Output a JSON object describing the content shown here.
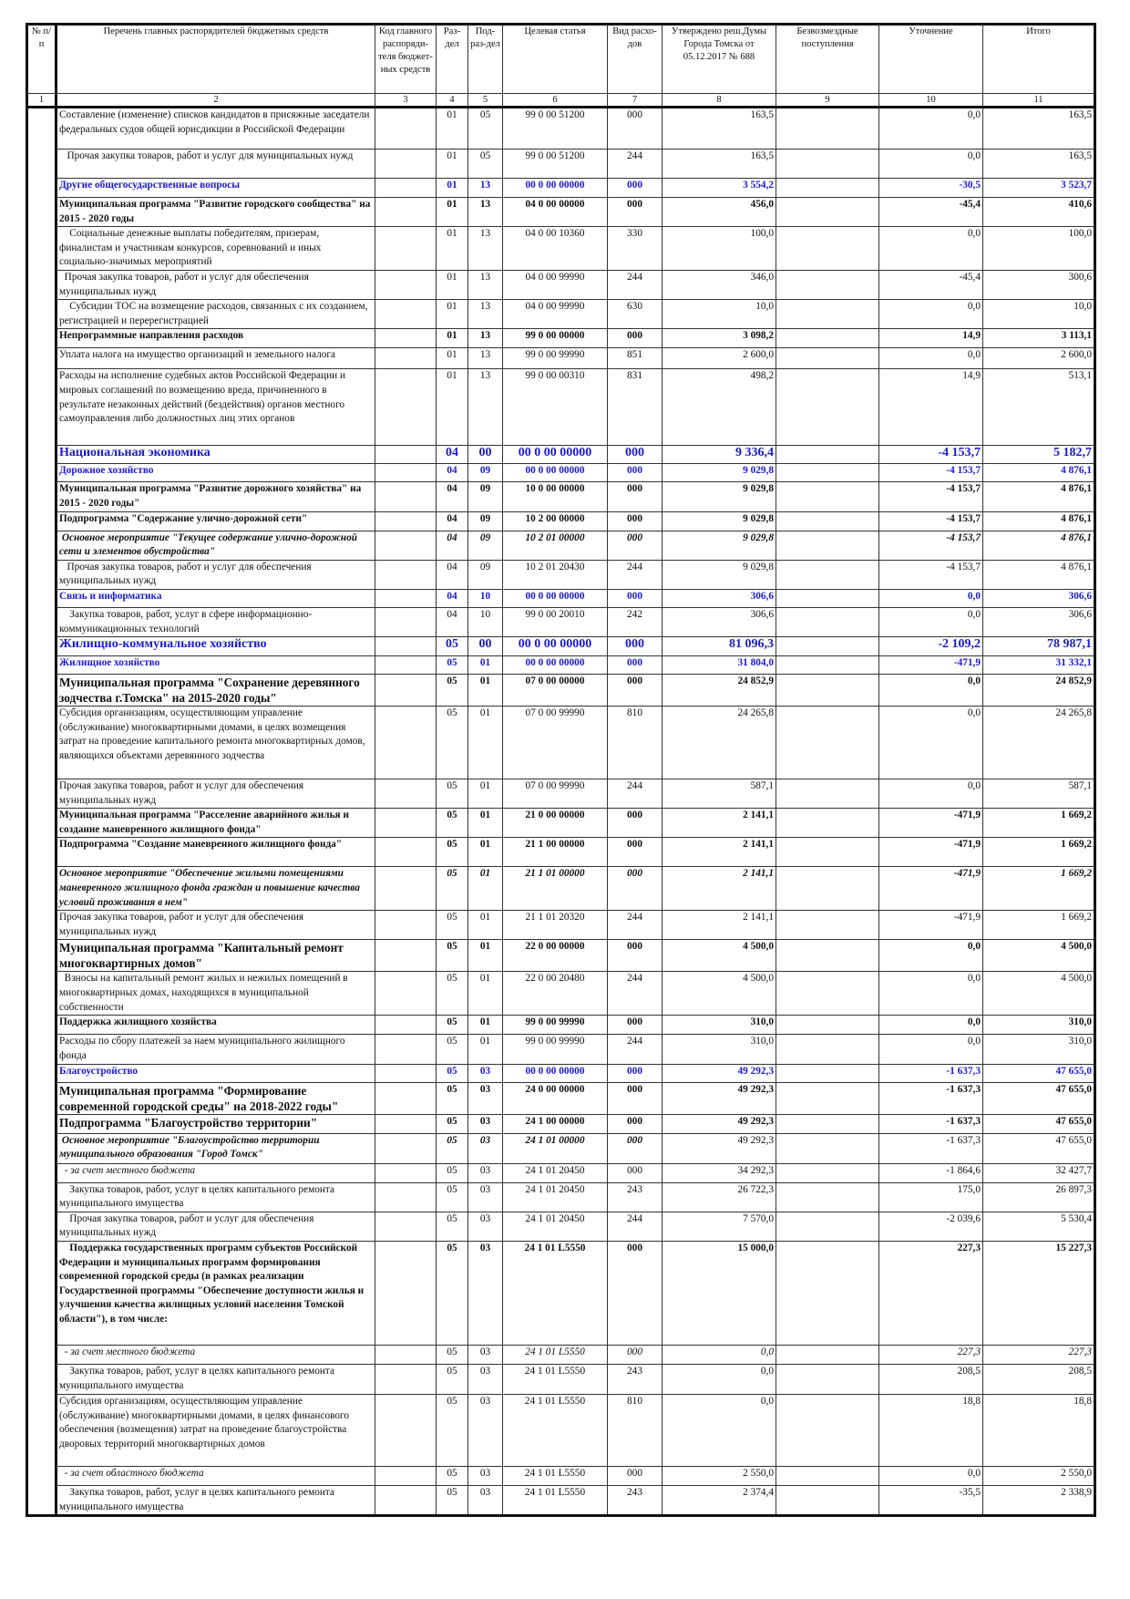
{
  "header": {
    "col1": "№ п/п",
    "col2": "Перечень главных распорядителей бюджетных средств",
    "col3": "Код главного распоряди-теля бюджет-ных средств",
    "col4": "Раз-дел",
    "col5": "Под-раз-дел",
    "col6": "Целевая статья",
    "col7": "Вид расхо-дов",
    "col8": "Утверждено реш.Думы Города Томска от 05.12.2017 № 688",
    "col9": "Безвозмездные поступления",
    "col10": "Уточнение",
    "col11": "Итого",
    "numbers": [
      "1",
      "2",
      "3",
      "4",
      "5",
      "6",
      "7",
      "8",
      "9",
      "10",
      "11"
    ]
  },
  "colors": {
    "section_blue": "#1a1adc"
  },
  "rows": [
    {
      "style": "normal",
      "name": "Составление (изменение) списков кандидатов в присяжные заседатели федеральных судов общей юрисдикции в Российской Федерации",
      "rz": "01",
      "prz": "05",
      "cs": "99 0 00 51200",
      "vr": "000",
      "approved": "163,5",
      "change": "0,0",
      "total": "163,5"
    },
    {
      "style": "normal",
      "name": "   Прочая закупка товаров, работ и услуг для муниципальных нужд",
      "rz": "01",
      "prz": "05",
      "cs": "99 0 00 51200",
      "vr": "244",
      "approved": "163,5",
      "change": "0,0",
      "total": "163,5"
    },
    {
      "style": "blue",
      "name": "Другие общегосударственные вопросы",
      "rz": "01",
      "prz": "13",
      "cs": "00 0 00 00000",
      "vr": "000",
      "approved": "3 554,2",
      "change": "-30,5",
      "total": "3 523,7"
    },
    {
      "style": "bold",
      "name": "Муниципальная программа \"Развитие городского сообщества\" на 2015 - 2020 годы",
      "rz": "01",
      "prz": "13",
      "cs": "04 0 00 00000",
      "vr": "000",
      "approved": "456,0",
      "change": "-45,4",
      "total": "410,6"
    },
    {
      "style": "normal",
      "name": "    Социальные денежные выплаты победителям, призерам, финалистам и участникам конкурсов, соревнований и иных социально-значимых мероприятий",
      "rz": "01",
      "prz": "13",
      "cs": "04 0 00 10360",
      "vr": "330",
      "approved": "100,0",
      "change": "0,0",
      "total": "100,0"
    },
    {
      "style": "normal",
      "name": "  Прочая закупка товаров, работ и услуг для обеспечения муниципальных нужд",
      "rz": "01",
      "prz": "13",
      "cs": "04 0 00 99990",
      "vr": "244",
      "approved": "346,0",
      "change": "-45,4",
      "total": "300,6"
    },
    {
      "style": "normal",
      "name": "    Субсидии ТОС на возмещение расходов, связанных с их созданием, регистрацией и перерегистрацией",
      "rz": "01",
      "prz": "13",
      "cs": "04 0 00 99990",
      "vr": "630",
      "approved": "10,0",
      "change": "0,0",
      "total": "10,0"
    },
    {
      "style": "bold",
      "name": "Непрограммные направления расходов",
      "rz": "01",
      "prz": "13",
      "cs": "99 0 00 00000",
      "vr": "000",
      "approved": "3 098,2",
      "change": "14,9",
      "total": "3 113,1"
    },
    {
      "style": "normal",
      "name": "Уплата налога на имущество организаций и земельного налога",
      "rz": "01",
      "prz": "13",
      "cs": "99 0 00 99990",
      "vr": "851",
      "approved": "2 600,0",
      "change": "0,0",
      "total": "2 600,0"
    },
    {
      "style": "normal",
      "name": "Расходы на исполнение судебных актов Российской Федерации и мировых соглашений по возмещению вреда, причиненного в результате незаконных действий (бездействия) органов местного самоуправления либо должностных лиц этих органов",
      "rz": "01",
      "prz": "13",
      "cs": "99 0 00 00310",
      "vr": "831",
      "approved": "498,2",
      "change": "14,9",
      "total": "513,1"
    },
    {
      "style": "bluelg",
      "name": "Национальная экономика",
      "rz": "04",
      "prz": "00",
      "cs": "00 0 00 00000",
      "vr": "000",
      "approved": "9 336,4",
      "change": "-4 153,7",
      "total": "5 182,7"
    },
    {
      "style": "blue",
      "name": "Дорожное хозяйство",
      "rz": "04",
      "prz": "09",
      "cs": "00 0 00 00000",
      "vr": "000",
      "approved": "9 029,8",
      "change": "-4 153,7",
      "total": "4 876,1"
    },
    {
      "style": "bold",
      "name": "Муниципальная программа \"Развитие дорожного хозяйства\" на 2015 - 2020 годы\"",
      "rz": "04",
      "prz": "09",
      "cs": "10 0 00 00000",
      "vr": "000",
      "approved": "9 029,8",
      "change": "-4 153,7",
      "total": "4 876,1"
    },
    {
      "style": "bold",
      "name": "Подпрограмма \"Содержание улично-дорожной сети\"",
      "rz": "04",
      "prz": "09",
      "cs": "10 2 00 00000",
      "vr": "000",
      "approved": "9 029,8",
      "change": "-4 153,7",
      "total": "4 876,1"
    },
    {
      "style": "bi",
      "name": " Основное мероприятие \"Текущее содержание улично-дорожной сети и элементов обустройства\"",
      "rz": "04",
      "prz": "09",
      "cs": "10 2 01 00000",
      "vr": "000",
      "approved": "9 029,8",
      "change": "-4 153,7",
      "total": "4 876,1"
    },
    {
      "style": "normal",
      "name": "   Прочая закупка товаров, работ и услуг для обеспечения муниципальных нужд",
      "rz": "04",
      "prz": "09",
      "cs": "10 2 01 20430",
      "vr": "244",
      "approved": "9 029,8",
      "change": "-4 153,7",
      "total": "4 876,1"
    },
    {
      "style": "blue",
      "name": "Связь и информатика",
      "rz": "04",
      "prz": "10",
      "cs": "00 0 00 00000",
      "vr": "000",
      "approved": "306,6",
      "change": "0,0",
      "total": "306,6"
    },
    {
      "style": "normal",
      "name": "    Закупка товаров, работ, услуг в сфере информационно-коммуникационных технологий",
      "rz": "04",
      "prz": "10",
      "cs": "99 0 00 20010",
      "vr": "242",
      "approved": "306,6",
      "change": "0,0",
      "total": "306,6"
    },
    {
      "style": "bluelg",
      "name": "Жилищно-коммунальное хозяйство",
      "rz": "05",
      "prz": "00",
      "cs": "00 0 00 00000",
      "vr": "000",
      "approved": "81 096,3",
      "change": "-2 109,2",
      "total": "78 987,1"
    },
    {
      "style": "blue",
      "name": "Жилищное хозяйство",
      "rz": "05",
      "prz": "01",
      "cs": "00 0 00 00000",
      "vr": "000",
      "approved": "31 804,0",
      "change": "-471,9",
      "total": "31 332,1"
    },
    {
      "style": "boldlg",
      "name": "Муниципальная программа \"Сохранение деревянного зодчества г.Томска\" на 2015-2020 годы\"",
      "rz": "05",
      "prz": "01",
      "cs": "07 0 00 00000",
      "vr": "000",
      "approved": "24 852,9",
      "change": "0,0",
      "total": "24 852,9"
    },
    {
      "style": "normal",
      "name": "Субсидия организациям, осуществляющим управление (обслуживание) многоквартирными домами, в целях возмещения затрат на проведение капитального ремонта многоквартирных домов, являющихся объектами деревянного зодчества",
      "rz": "05",
      "prz": "01",
      "cs": "07 0 00 99990",
      "vr": "810",
      "approved": "24 265,8",
      "change": "0,0",
      "total": "24 265,8"
    },
    {
      "style": "normal",
      "name": "Прочая закупка товаров, работ и услуг для обеспечения муниципальных нужд",
      "rz": "05",
      "prz": "01",
      "cs": "07 0 00 99990",
      "vr": "244",
      "approved": "587,1",
      "change": "0,0",
      "total": "587,1"
    },
    {
      "style": "bold",
      "name": "Муниципальная программа \"Расселение аварийного жилья и создание маневренного жилищного фонда\"",
      "rz": "05",
      "prz": "01",
      "cs": "21 0 00 00000",
      "vr": "000",
      "approved": "2 141,1",
      "change": "-471,9",
      "total": "1 669,2"
    },
    {
      "style": "bold",
      "name": "Подпрограмма \"Создание маневренного жилищного фонда\"",
      "rz": "05",
      "prz": "01",
      "cs": "21 1 00 00000",
      "vr": "000",
      "approved": "2 141,1",
      "change": "-471,9",
      "total": "1 669,2"
    },
    {
      "style": "bi",
      "name": "Основное мероприятие \"Обеспечение жилыми помещениями маневренного жилищного фонда граждан и повышение качества условий проживания в нем\"",
      "rz": "05",
      "prz": "01",
      "cs": "21 1 01 00000",
      "vr": "000",
      "approved": "2 141,1",
      "change": "-471,9",
      "total": "1 669,2"
    },
    {
      "style": "normal",
      "name": "Прочая закупка товаров, работ и услуг для обеспечения муниципальных нужд",
      "rz": "05",
      "prz": "01",
      "cs": "21 1 01 20320",
      "vr": "244",
      "approved": "2 141,1",
      "change": "-471,9",
      "total": "1 669,2"
    },
    {
      "style": "boldlg",
      "name": "Муниципальная программа \"Капитальный ремонт многоквартирных домов\"",
      "rz": "05",
      "prz": "01",
      "cs": "22 0 00 00000",
      "vr": "000",
      "approved": "4 500,0",
      "change": "0,0",
      "total": "4 500,0"
    },
    {
      "style": "normal",
      "name": "  Взносы на капитальный ремонт жилых и нежилых помещений в многоквартирных домах, находящихся в муниципальной собственности",
      "rz": "05",
      "prz": "01",
      "cs": "22 0 00 20480",
      "vr": "244",
      "approved": "4 500,0",
      "change": "0,0",
      "total": "4 500,0"
    },
    {
      "style": "bold",
      "name": "Поддержка жилищного хозяйства",
      "rz": "05",
      "prz": "01",
      "cs": "99 0 00 99990",
      "vr": "000",
      "approved": "310,0",
      "change": "0,0",
      "total": "310,0"
    },
    {
      "style": "normal",
      "name": "Расходы по сбору платежей за наем муниципального жилищного фонда",
      "rz": "05",
      "prz": "01",
      "cs": "99 0 00 99990",
      "vr": "244",
      "approved": "310,0",
      "change": "0,0",
      "total": "310,0"
    },
    {
      "style": "blue",
      "name": "Благоустройство",
      "rz": "05",
      "prz": "03",
      "cs": "00 0 00 00000",
      "vr": "000",
      "approved": "49 292,3",
      "change": "-1 637,3",
      "total": "47 655,0"
    },
    {
      "style": "boldlg",
      "name": "Муниципальная программа \"Формирование современной городской среды\" на 2018-2022 годы\"",
      "rz": "05",
      "prz": "03",
      "cs": "24 0 00 00000",
      "vr": "000",
      "approved": "49 292,3",
      "change": "-1 637,3",
      "total": "47 655,0"
    },
    {
      "style": "boldlg",
      "name": "Подпрограмма \"Благоустройство территории\"",
      "rz": "05",
      "prz": "03",
      "cs": "24 1 00 00000",
      "vr": "000",
      "approved": "49 292,3",
      "change": "-1 637,3",
      "total": "47 655,0"
    },
    {
      "style": "bi2",
      "name": " Основное мероприятие \"Благоустройство территории муниципального образования \"Город Томск\"",
      "rz": "05",
      "prz": "03",
      "cs": "24 1 01 00000",
      "vr": "000",
      "approved": "49 292,3",
      "change": "-1 637,3",
      "total": "47 655,0"
    },
    {
      "style": "it",
      "name": "  - за счет местного бюджета",
      "rz": "05",
      "prz": "03",
      "cs": "24 1 01 20450",
      "vr": "000",
      "approved": "34 292,3",
      "change": "-1 864,6",
      "total": "32 427,7"
    },
    {
      "style": "normal",
      "name": "    Закупка товаров, работ, услуг в целях капитального ремонта муниципального имущества",
      "rz": "05",
      "prz": "03",
      "cs": "24 1 01 20450",
      "vr": "243",
      "approved": "26 722,3",
      "change": "175,0",
      "total": "26 897,3"
    },
    {
      "style": "normal",
      "name": "    Прочая закупка товаров, работ и услуг для обеспечения муниципальных нужд",
      "rz": "05",
      "prz": "03",
      "cs": "24 1 01 20450",
      "vr": "244",
      "approved": "7 570,0",
      "change": "-2 039,6",
      "total": "5 530,4"
    },
    {
      "style": "bold",
      "name": "    Поддержка государственных программ субъектов Российской Федерации и муниципальных программ формирования современной городской среды (в рамках реализации Государственной программы \"Обеспечение доступности жилья и улучшения качества жилищных условий населения Томской области\"), в том числе:",
      "rz": "05",
      "prz": "03",
      "cs": "24 1 01 L5550",
      "vr": "000",
      "approved": "15 000,0",
      "change": "227,3",
      "total": "15 227,3"
    },
    {
      "style": "it2",
      "name": "  - за счет местного бюджета",
      "rz": "05",
      "prz": "03",
      "cs": "24 1 01 L5550",
      "vr": "000",
      "approved": "0,0",
      "change": "227,3",
      "total": "227,3"
    },
    {
      "style": "normal",
      "name": "    Закупка товаров, работ, услуг в целях капитального ремонта муниципального имущества",
      "rz": "05",
      "prz": "03",
      "cs": "24 1 01 L5550",
      "vr": "243",
      "approved": "0,0",
      "change": "208,5",
      "total": "208,5"
    },
    {
      "style": "normal",
      "name": "Субсидия организациям, осуществляющим управление (обслуживание) многоквартирными домами, в целях финансового обеспечения (возмещения) затрат на проведение благоустройства дворовых территорий многоквартирных домов",
      "rz": "05",
      "prz": "03",
      "cs": "24 1 01 L5550",
      "vr": "810",
      "approved": "0,0",
      "change": "18,8",
      "total": "18,8"
    },
    {
      "style": "it",
      "name": "  - за счет областного бюджета",
      "rz": "05",
      "prz": "03",
      "cs": "24 1 01 L5550",
      "vr": "000",
      "approved": "2 550,0",
      "change": "0,0",
      "total": "2 550,0"
    },
    {
      "style": "normal",
      "name": "    Закупка товаров, работ, услуг в целях капитального ремонта муниципального имущества",
      "rz": "05",
      "prz": "03",
      "cs": "24 1 01 L5550",
      "vr": "243",
      "approved": "2 374,4",
      "change": "-35,5",
      "total": "2 338,9"
    }
  ]
}
